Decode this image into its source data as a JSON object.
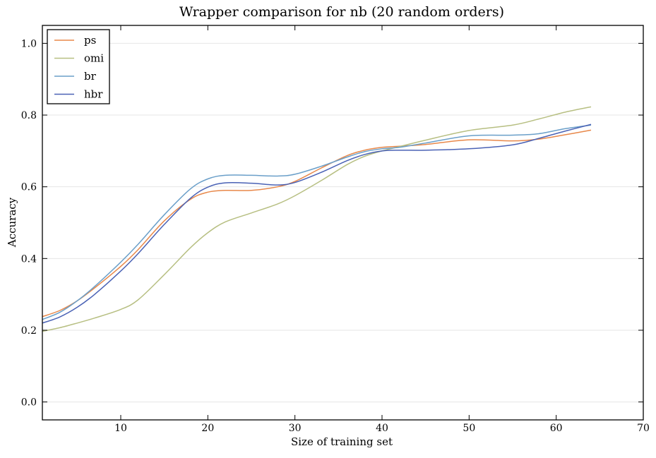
{
  "chart_data": {
    "type": "line",
    "title": "Wrapper comparison for nb (20 random orders)",
    "xlabel": "Size of training set",
    "ylabel": "Accuracy",
    "xlim": [
      1,
      70
    ],
    "ylim": [
      -0.05,
      1.05
    ],
    "xticks": [
      10,
      20,
      30,
      40,
      50,
      60,
      70
    ],
    "yticks": [
      0.0,
      0.2,
      0.4,
      0.6,
      0.8,
      1.0
    ],
    "ytick_labels": [
      "0.0",
      "0.2",
      "0.4",
      "0.6",
      "0.8",
      "1.0"
    ],
    "grid": "horizontal, light",
    "legend_position": "top-left",
    "x": [
      1,
      3,
      5,
      7,
      10,
      12,
      15,
      18,
      20,
      22,
      25,
      28,
      30,
      33,
      36,
      38,
      40,
      42,
      45,
      50,
      55,
      58,
      61,
      64
    ],
    "series": [
      {
        "name": "ps",
        "color": "#e8884a",
        "values": [
          0.238,
          0.255,
          0.282,
          0.318,
          0.378,
          0.425,
          0.505,
          0.565,
          0.585,
          0.59,
          0.59,
          0.6,
          0.615,
          0.652,
          0.687,
          0.702,
          0.71,
          0.713,
          0.718,
          0.731,
          0.728,
          0.733,
          0.745,
          0.758
        ]
      },
      {
        "name": "omi",
        "color": "#b7bf82",
        "values": [
          0.197,
          0.207,
          0.22,
          0.234,
          0.258,
          0.285,
          0.355,
          0.43,
          0.472,
          0.502,
          0.527,
          0.552,
          0.575,
          0.617,
          0.662,
          0.685,
          0.7,
          0.712,
          0.73,
          0.757,
          0.772,
          0.789,
          0.808,
          0.823
        ]
      },
      {
        "name": "br",
        "color": "#6a9fc9",
        "values": [
          0.23,
          0.25,
          0.282,
          0.322,
          0.39,
          0.44,
          0.522,
          0.594,
          0.622,
          0.632,
          0.632,
          0.63,
          0.635,
          0.657,
          0.683,
          0.698,
          0.706,
          0.71,
          0.722,
          0.742,
          0.744,
          0.748,
          0.762,
          0.772
        ]
      },
      {
        "name": "hbr",
        "color": "#4a62b5",
        "values": [
          0.22,
          0.237,
          0.264,
          0.3,
          0.365,
          0.414,
          0.495,
          0.568,
          0.599,
          0.611,
          0.61,
          0.605,
          0.612,
          0.64,
          0.673,
          0.69,
          0.7,
          0.702,
          0.702,
          0.706,
          0.717,
          0.735,
          0.755,
          0.774
        ]
      }
    ]
  }
}
